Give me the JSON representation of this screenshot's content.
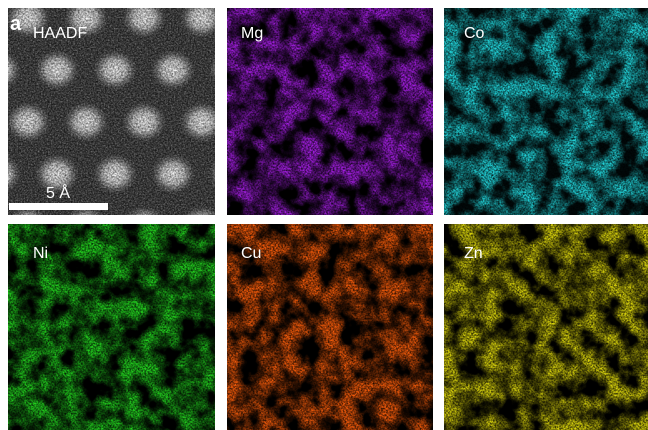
{
  "figure": {
    "panel_label": "a",
    "scale_bar": "5 Å",
    "panels": [
      {
        "label": "HAADF"
      },
      {
        "label": "Mg"
      },
      {
        "label": "Co"
      },
      {
        "label": "Ni"
      },
      {
        "label": "Cu"
      },
      {
        "label": "Zn"
      }
    ]
  }
}
